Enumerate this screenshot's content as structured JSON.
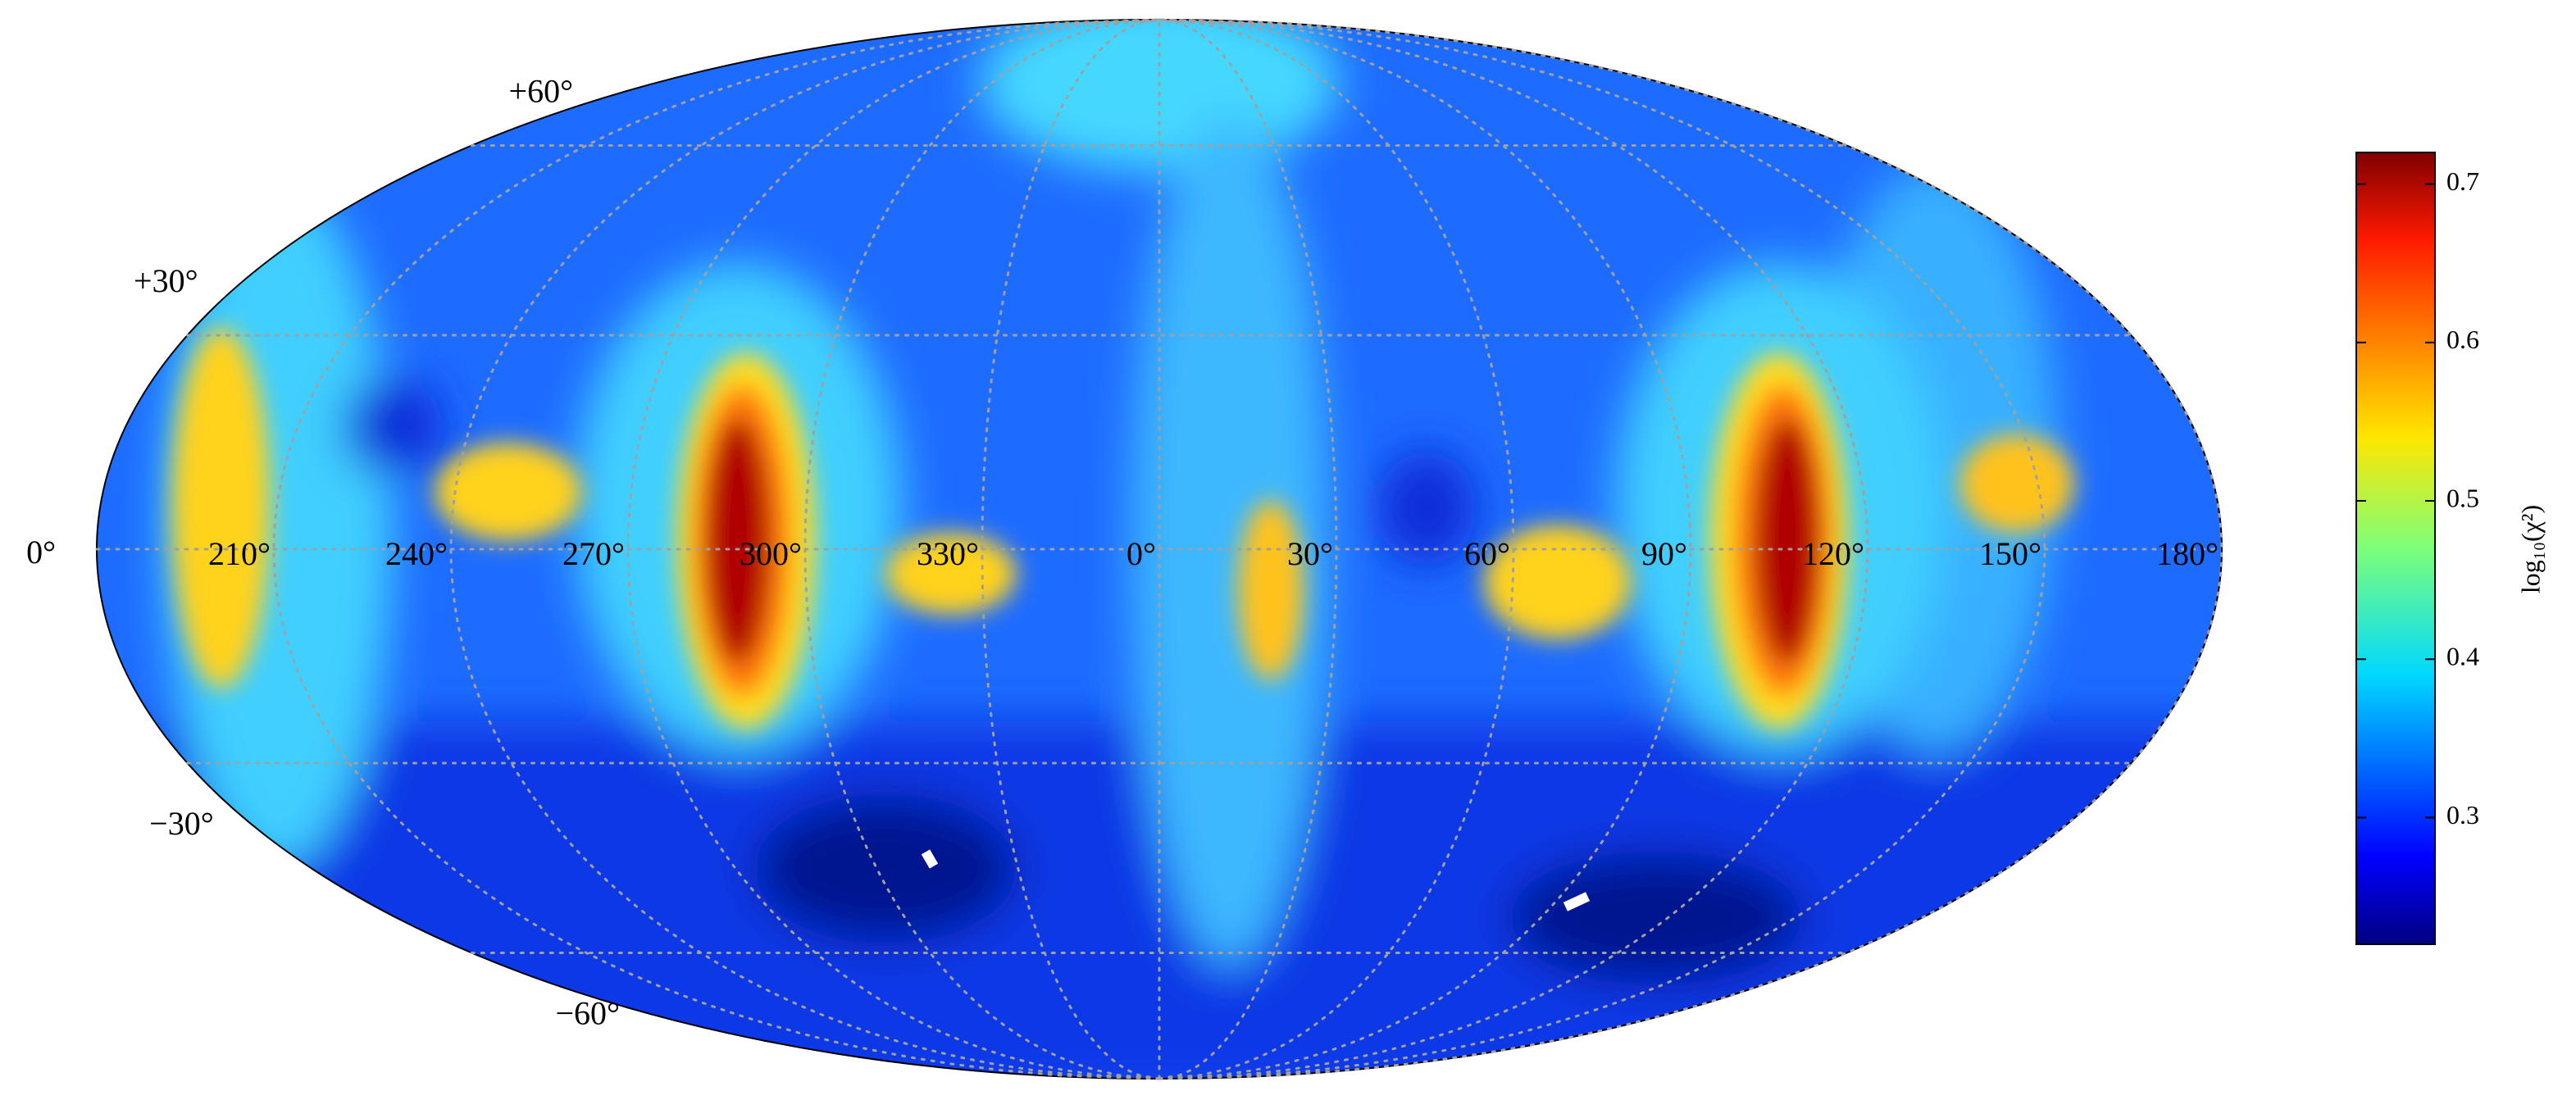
{
  "chart_data": {
    "type": "mollweide",
    "xticks": [
      {
        "value": 210,
        "label": "210°"
      },
      {
        "value": 240,
        "label": "240°"
      },
      {
        "value": 270,
        "label": "270°"
      },
      {
        "value": 300,
        "label": "300°"
      },
      {
        "value": 330,
        "label": "330°"
      },
      {
        "value": 0,
        "label": "0°"
      },
      {
        "value": 30,
        "label": "30°"
      },
      {
        "value": 60,
        "label": "60°"
      },
      {
        "value": 90,
        "label": "90°"
      },
      {
        "value": 120,
        "label": "120°"
      },
      {
        "value": 150,
        "label": "150°"
      },
      {
        "value": 180,
        "label": "180°"
      }
    ],
    "yticks": [
      {
        "value": -60,
        "label": "−60°"
      },
      {
        "value": -30,
        "label": "−30°"
      },
      {
        "value": 0,
        "label": "0°"
      },
      {
        "value": 30,
        "label": "+30°"
      },
      {
        "value": 60,
        "label": "+60°"
      }
    ],
    "grid": true,
    "colorbar": {
      "label": "log₁₀(χ²)",
      "clim": [
        0.22,
        0.72
      ],
      "ticks": [
        0.3,
        0.4,
        0.5,
        0.6,
        0.7
      ],
      "colormap": "jet"
    }
  }
}
